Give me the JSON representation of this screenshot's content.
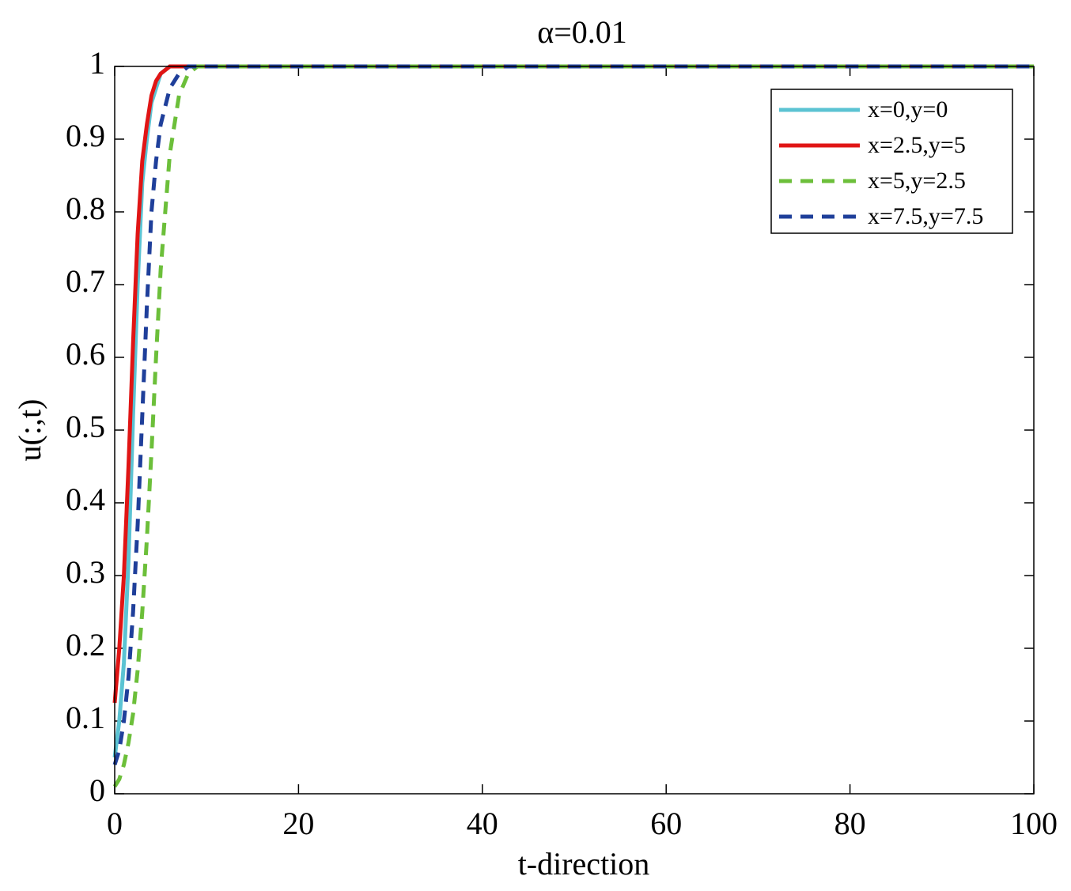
{
  "chart_data": {
    "type": "line",
    "title": "α=0.01",
    "xlabel": "t-direction",
    "ylabel": "u(:,t)",
    "x": [
      0,
      0.5,
      1,
      1.5,
      2,
      2.5,
      3,
      3.5,
      4,
      4.5,
      5,
      6,
      7,
      8,
      9,
      10,
      100
    ],
    "series": [
      {
        "name": "x=0,y=0",
        "color": "#5bc3d3",
        "linestyle": "solid",
        "values": [
          0.05,
          0.1,
          0.18,
          0.32,
          0.52,
          0.7,
          0.84,
          0.9,
          0.95,
          0.97,
          0.99,
          1,
          1,
          1,
          1,
          1,
          1
        ]
      },
      {
        "name": "x=2.5,y=5",
        "color": "#e01515",
        "linestyle": "solid",
        "values": [
          0.125,
          0.2,
          0.3,
          0.45,
          0.62,
          0.77,
          0.87,
          0.92,
          0.96,
          0.98,
          0.99,
          1,
          1,
          1,
          1,
          1,
          1
        ]
      },
      {
        "name": "x=5,y=2.5",
        "color": "#6cbf3a",
        "linestyle": "dashed",
        "values": [
          0.01,
          0.02,
          0.04,
          0.07,
          0.11,
          0.17,
          0.25,
          0.35,
          0.47,
          0.6,
          0.72,
          0.88,
          0.96,
          0.99,
          1,
          1,
          1
        ]
      },
      {
        "name": "x=7.5,y=7.5",
        "color": "#1f3f9a",
        "linestyle": "dashed",
        "values": [
          0.04,
          0.06,
          0.1,
          0.16,
          0.25,
          0.37,
          0.52,
          0.67,
          0.8,
          0.87,
          0.92,
          0.97,
          0.99,
          1,
          1,
          1,
          1
        ]
      }
    ],
    "xlim": [
      0,
      100
    ],
    "xticks": [
      0,
      20,
      40,
      60,
      80,
      100
    ],
    "ylim": [
      0,
      1
    ],
    "yticks": [
      0,
      0.1,
      0.2,
      0.3,
      0.4,
      0.5,
      0.6,
      0.7,
      0.8,
      0.9,
      1
    ],
    "legend": "top-right",
    "grid": false
  }
}
